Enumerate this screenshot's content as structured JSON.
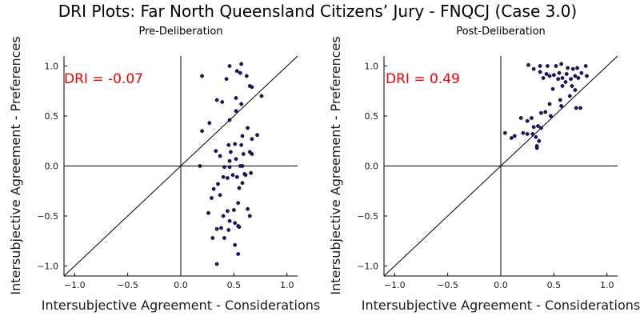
{
  "title": "DRI Plots: Far North Queensland Citizens’ Jury - FNQCJ (Case 3.0)",
  "chart_data": [
    {
      "type": "scatter",
      "title": "Pre-Deliberation",
      "xlabel": "Intersubjective Agreement - Considerations",
      "ylabel": "Intersubjective Agreement - Preferences",
      "xlim": [
        -1.1,
        1.1
      ],
      "ylim": [
        -1.1,
        1.1
      ],
      "xticks": [
        -1.0,
        -0.5,
        0.0,
        0.5,
        1.0
      ],
      "xtick_labels": [
        "−1.0",
        "−0.5",
        "0.0",
        "0.5",
        "1.0"
      ],
      "yticks": [
        -1.0,
        -0.5,
        0.0,
        0.5,
        1.0
      ],
      "ytick_labels": [
        "−1.0",
        "−0.5",
        "0.0",
        "0.5",
        "1.0"
      ],
      "annotation": "DRI = -0.07",
      "reference_lines": [
        "x=0",
        "y=0",
        "y=x"
      ],
      "grid": false,
      "marker_color": "#1f1177",
      "annotation_color": "#ff0000",
      "points": [
        [
          0.2,
          0.9
        ],
        [
          0.46,
          1.0
        ],
        [
          0.57,
          1.02
        ],
        [
          0.53,
          0.95
        ],
        [
          0.56,
          0.93
        ],
        [
          0.62,
          0.9
        ],
        [
          0.43,
          0.87
        ],
        [
          0.65,
          0.8
        ],
        [
          0.67,
          0.79
        ],
        [
          0.76,
          0.7
        ],
        [
          0.52,
          0.68
        ],
        [
          0.34,
          0.66
        ],
        [
          0.39,
          0.64
        ],
        [
          0.57,
          0.62
        ],
        [
          0.52,
          0.55
        ],
        [
          0.46,
          0.46
        ],
        [
          0.27,
          0.43
        ],
        [
          0.2,
          0.35
        ],
        [
          0.63,
          0.38
        ],
        [
          0.58,
          0.3
        ],
        [
          0.72,
          0.31
        ],
        [
          0.67,
          0.27
        ],
        [
          0.51,
          0.22
        ],
        [
          0.57,
          0.21
        ],
        [
          0.45,
          0.21
        ],
        [
          0.33,
          0.15
        ],
        [
          0.47,
          0.14
        ],
        [
          0.65,
          0.14
        ],
        [
          0.67,
          0.12
        ],
        [
          0.59,
          0.12
        ],
        [
          0.37,
          0.1
        ],
        [
          0.52,
          0.07
        ],
        [
          0.46,
          0.05
        ],
        [
          0.58,
          0.0
        ],
        [
          0.56,
          0.0
        ],
        [
          0.18,
          0.0
        ],
        [
          0.46,
          -0.01
        ],
        [
          0.41,
          -0.01
        ],
        [
          0.49,
          -0.09
        ],
        [
          0.6,
          -0.08
        ],
        [
          0.61,
          -0.09
        ],
        [
          0.53,
          -0.11
        ],
        [
          0.4,
          -0.11
        ],
        [
          0.66,
          -0.07
        ],
        [
          0.44,
          -0.12
        ],
        [
          0.35,
          -0.18
        ],
        [
          0.58,
          -0.17
        ],
        [
          0.31,
          -0.23
        ],
        [
          0.55,
          -0.22
        ],
        [
          0.29,
          -0.32
        ],
        [
          0.37,
          -0.29
        ],
        [
          0.54,
          -0.37
        ],
        [
          0.5,
          -0.44
        ],
        [
          0.44,
          -0.45
        ],
        [
          0.63,
          -0.43
        ],
        [
          0.26,
          -0.47
        ],
        [
          0.4,
          -0.5
        ],
        [
          0.65,
          -0.5
        ],
        [
          0.46,
          -0.55
        ],
        [
          0.51,
          -0.57
        ],
        [
          0.54,
          -0.6
        ],
        [
          0.55,
          -0.61
        ],
        [
          0.38,
          -0.62
        ],
        [
          0.45,
          -0.64
        ],
        [
          0.34,
          -0.63
        ],
        [
          0.3,
          -0.72
        ],
        [
          0.41,
          -0.72
        ],
        [
          0.51,
          -0.79
        ],
        [
          0.54,
          -0.88
        ],
        [
          0.34,
          -0.98
        ]
      ]
    },
    {
      "type": "scatter",
      "title": "Post-Deliberation",
      "xlabel": "Intersubjective Agreement - Considerations",
      "ylabel": "Intersubjective Agreement - Preferences",
      "xlim": [
        -1.1,
        1.1
      ],
      "ylim": [
        -1.1,
        1.1
      ],
      "xticks": [
        -1.0,
        -0.5,
        0.0,
        0.5,
        1.0
      ],
      "xtick_labels": [
        "−1.0",
        "−0.5",
        "0.0",
        "0.5",
        "1.0"
      ],
      "yticks": [
        -1.0,
        -0.5,
        0.0,
        0.5,
        1.0
      ],
      "ytick_labels": [
        "−1.0",
        "−0.5",
        "0.0",
        "0.5",
        "1.0"
      ],
      "annotation": "DRI = 0.49",
      "reference_lines": [
        "x=0",
        "y=0",
        "y=x"
      ],
      "grid": false,
      "marker_color": "#1f1177",
      "annotation_color": "#ff0000",
      "points": [
        [
          0.26,
          1.01
        ],
        [
          0.37,
          1.0
        ],
        [
          0.44,
          1.0
        ],
        [
          0.52,
          1.0
        ],
        [
          0.57,
          1.02
        ],
        [
          0.63,
          0.98
        ],
        [
          0.68,
          0.97
        ],
        [
          0.72,
          0.98
        ],
        [
          0.8,
          1.0
        ],
        [
          0.31,
          0.97
        ],
        [
          0.37,
          0.94
        ],
        [
          0.43,
          0.92
        ],
        [
          0.5,
          0.91
        ],
        [
          0.55,
          0.93
        ],
        [
          0.62,
          0.92
        ],
        [
          0.7,
          0.9
        ],
        [
          0.76,
          0.93
        ],
        [
          0.81,
          0.9
        ],
        [
          0.4,
          0.88
        ],
        [
          0.46,
          0.9
        ],
        [
          0.54,
          0.87
        ],
        [
          0.58,
          0.88
        ],
        [
          0.66,
          0.87
        ],
        [
          0.73,
          0.88
        ],
        [
          0.61,
          0.84
        ],
        [
          0.58,
          0.8
        ],
        [
          0.67,
          0.8
        ],
        [
          0.49,
          0.77
        ],
        [
          0.7,
          0.76
        ],
        [
          0.65,
          0.7
        ],
        [
          0.56,
          0.66
        ],
        [
          0.46,
          0.62
        ],
        [
          0.57,
          0.6
        ],
        [
          0.71,
          0.58
        ],
        [
          0.75,
          0.58
        ],
        [
          0.42,
          0.54
        ],
        [
          0.38,
          0.53
        ],
        [
          0.47,
          0.5
        ],
        [
          0.19,
          0.48
        ],
        [
          0.29,
          0.48
        ],
        [
          0.25,
          0.45
        ],
        [
          0.35,
          0.4
        ],
        [
          0.31,
          0.39
        ],
        [
          0.38,
          0.38
        ],
        [
          0.21,
          0.33
        ],
        [
          0.13,
          0.3
        ],
        [
          0.04,
          0.33
        ],
        [
          0.25,
          0.32
        ],
        [
          0.3,
          0.32
        ],
        [
          0.33,
          0.29
        ],
        [
          0.1,
          0.28
        ],
        [
          0.36,
          0.25
        ],
        [
          0.34,
          0.2
        ],
        [
          0.34,
          0.18
        ]
      ]
    }
  ]
}
